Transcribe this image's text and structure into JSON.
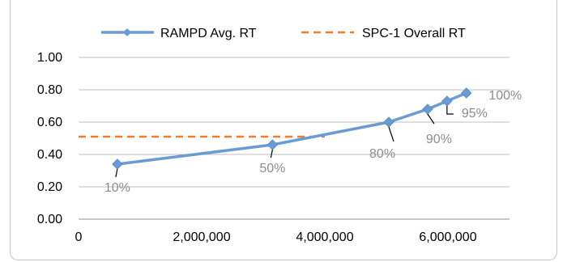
{
  "chart_data": {
    "type": "line",
    "title": "",
    "xlabel": "",
    "ylabel": "",
    "xlim": [
      0,
      7000000
    ],
    "ylim": [
      0,
      1.0
    ],
    "x_ticks": [
      0,
      2000000,
      4000000,
      6000000
    ],
    "x_tick_labels": [
      "0",
      "2,000,000",
      "4,000,000",
      "6,000,000"
    ],
    "y_ticks": [
      0,
      0.2,
      0.4,
      0.6,
      0.8,
      1.0
    ],
    "y_tick_labels": [
      "0.00",
      "0.20",
      "0.40",
      "0.60",
      "0.80",
      "1.00"
    ],
    "grid": "horizontal",
    "legend_position": "top",
    "series": [
      {
        "name": "RAMPD Avg. RT",
        "color": "#6a9bd3",
        "marker": "diamond",
        "points": [
          {
            "x": 630000,
            "y": 0.34,
            "label": "10%"
          },
          {
            "x": 3150000,
            "y": 0.46,
            "label": "50%"
          },
          {
            "x": 5040000,
            "y": 0.6,
            "label": "80%"
          },
          {
            "x": 5670000,
            "y": 0.68,
            "label": "90%"
          },
          {
            "x": 5985000,
            "y": 0.73,
            "label": "95%"
          },
          {
            "x": 6300000,
            "y": 0.78,
            "label": "100%"
          }
        ]
      },
      {
        "name": "SPC-1 Overall RT",
        "color": "#ed7d31",
        "style": "dashed",
        "points": [
          {
            "x": 0,
            "y": 0.51
          },
          {
            "x": 4000000,
            "y": 0.51
          }
        ]
      }
    ]
  }
}
